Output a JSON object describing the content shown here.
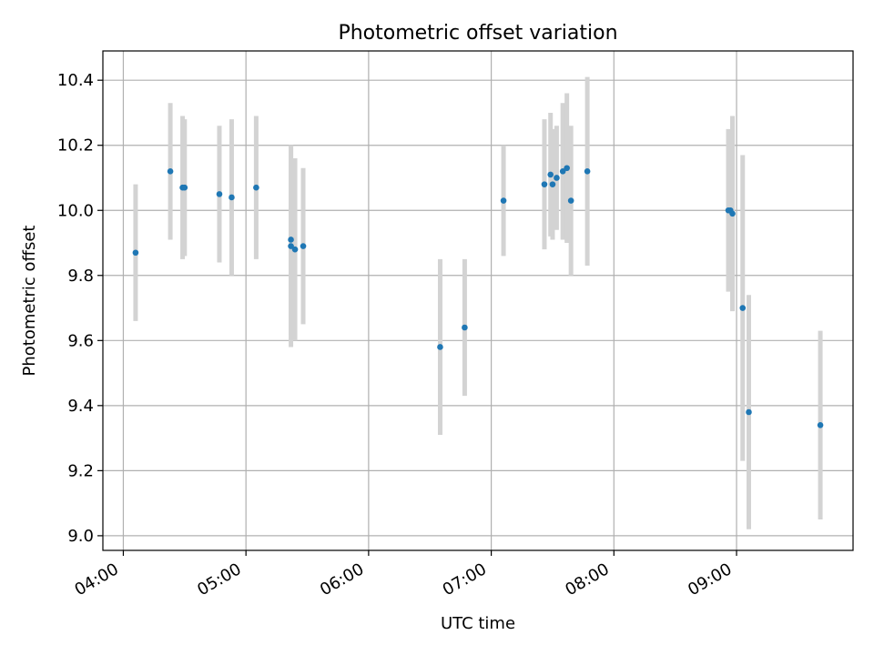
{
  "chart_data": {
    "type": "scatter",
    "title": "Photometric offset variation",
    "xlabel": "UTC time",
    "ylabel": "Photometric offset",
    "x_ticks": [
      "04:00",
      "05:00",
      "06:00",
      "07:00",
      "08:00",
      "09:00"
    ],
    "y_ticks": [
      "9.0",
      "9.2",
      "9.4",
      "9.6",
      "9.8",
      "10.0",
      "10.2",
      "10.4"
    ],
    "xlim": [
      "03:50",
      "09:57"
    ],
    "ylim": [
      8.955,
      10.49
    ],
    "grid": true,
    "colors": {
      "point": "#1f77b4",
      "errorbar": "#d3d3d3",
      "grid": "#b0b0b0"
    },
    "series": [
      {
        "points": [
          {
            "x": "04:06",
            "y": 9.87,
            "yerr": 0.21
          },
          {
            "x": "04:23",
            "y": 10.12,
            "yerr": 0.21
          },
          {
            "x": "04:29",
            "y": 10.07,
            "yerr": 0.22
          },
          {
            "x": "04:30",
            "y": 10.07,
            "yerr": 0.21
          },
          {
            "x": "04:47",
            "y": 10.05,
            "yerr": 0.21
          },
          {
            "x": "04:53",
            "y": 10.04,
            "yerr": 0.24
          },
          {
            "x": "05:05",
            "y": 10.07,
            "yerr": 0.22
          },
          {
            "x": "05:22",
            "y": 9.89,
            "yerr": 0.31
          },
          {
            "x": "05:22",
            "y": 9.91,
            "yerr": 0.29
          },
          {
            "x": "05:24",
            "y": 9.88,
            "yerr": 0.28
          },
          {
            "x": "05:28",
            "y": 9.89,
            "yerr": 0.24
          },
          {
            "x": "06:35",
            "y": 9.58,
            "yerr": 0.27
          },
          {
            "x": "06:47",
            "y": 9.64,
            "yerr": 0.21
          },
          {
            "x": "07:06",
            "y": 10.03,
            "yerr": 0.17
          },
          {
            "x": "07:26",
            "y": 10.08,
            "yerr": 0.2
          },
          {
            "x": "07:29",
            "y": 10.11,
            "yerr": 0.19
          },
          {
            "x": "07:30",
            "y": 10.08,
            "yerr": 0.17
          },
          {
            "x": "07:32",
            "y": 10.1,
            "yerr": 0.16
          },
          {
            "x": "07:35",
            "y": 10.12,
            "yerr": 0.21
          },
          {
            "x": "07:37",
            "y": 10.13,
            "yerr": 0.23
          },
          {
            "x": "07:39",
            "y": 10.03,
            "yerr": 0.23
          },
          {
            "x": "07:47",
            "y": 10.12,
            "yerr": 0.29
          },
          {
            "x": "08:56",
            "y": 10.0,
            "yerr": 0.25
          },
          {
            "x": "08:57",
            "y": 10.0,
            "yerr": 0.24
          },
          {
            "x": "08:58",
            "y": 9.99,
            "yerr": 0.3
          },
          {
            "x": "09:03",
            "y": 9.7,
            "yerr": 0.47
          },
          {
            "x": "09:06",
            "y": 9.38,
            "yerr": 0.36
          },
          {
            "x": "09:41",
            "y": 9.34,
            "yerr": 0.29
          }
        ]
      }
    ]
  }
}
